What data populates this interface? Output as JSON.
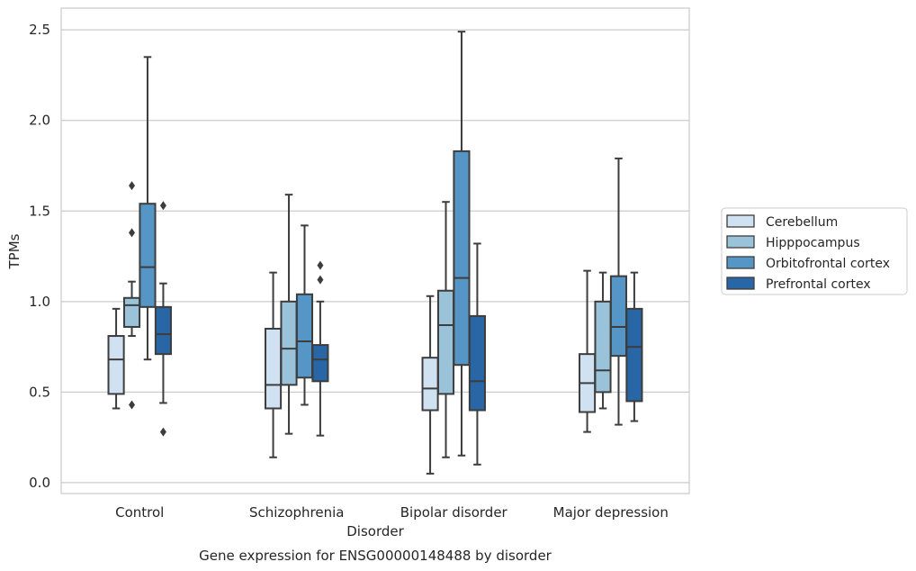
{
  "caption": "Gene expression for ENSG00000148488 by disorder",
  "chart_data": {
    "type": "box",
    "xlabel": "Disorder",
    "ylabel": "TPMs",
    "ylim": [
      -0.06,
      2.62
    ],
    "yticks": [
      "0.0",
      "0.5",
      "1.0",
      "1.5",
      "2.0",
      "2.5"
    ],
    "grid": true,
    "legend_position": "right",
    "categories": [
      "Control",
      "Schizophrenia",
      "Bipolar disorder",
      "Major depression"
    ],
    "series": [
      {
        "name": "Cerebellum",
        "color": "#d0e1f2",
        "boxes": [
          {
            "whislo": 0.41,
            "q1": 0.49,
            "med": 0.68,
            "q3": 0.81,
            "whishi": 0.96,
            "fliers": []
          },
          {
            "whislo": 0.14,
            "q1": 0.41,
            "med": 0.54,
            "q3": 0.85,
            "whishi": 1.16,
            "fliers": []
          },
          {
            "whislo": 0.05,
            "q1": 0.4,
            "med": 0.52,
            "q3": 0.69,
            "whishi": 1.03,
            "fliers": []
          },
          {
            "whislo": 0.28,
            "q1": 0.39,
            "med": 0.55,
            "q3": 0.71,
            "whishi": 1.17,
            "fliers": []
          }
        ]
      },
      {
        "name": "Hipppocampus",
        "color": "#9ac3da",
        "boxes": [
          {
            "whislo": 0.81,
            "q1": 0.86,
            "med": 0.98,
            "q3": 1.02,
            "whishi": 1.11,
            "fliers": [
              0.43,
              1.38,
              1.64
            ]
          },
          {
            "whislo": 0.27,
            "q1": 0.54,
            "med": 0.74,
            "q3": 1.0,
            "whishi": 1.59,
            "fliers": []
          },
          {
            "whislo": 0.14,
            "q1": 0.49,
            "med": 0.87,
            "q3": 1.06,
            "whishi": 1.55,
            "fliers": []
          },
          {
            "whislo": 0.41,
            "q1": 0.5,
            "med": 0.62,
            "q3": 1.0,
            "whishi": 1.16,
            "fliers": []
          }
        ]
      },
      {
        "name": "Orbitofrontal cortex",
        "color": "#5696c6",
        "boxes": [
          {
            "whislo": 0.68,
            "q1": 0.97,
            "med": 1.19,
            "q3": 1.54,
            "whishi": 2.35,
            "fliers": []
          },
          {
            "whislo": 0.43,
            "q1": 0.58,
            "med": 0.78,
            "q3": 1.04,
            "whishi": 1.42,
            "fliers": []
          },
          {
            "whislo": 0.15,
            "q1": 0.65,
            "med": 1.13,
            "q3": 1.83,
            "whishi": 2.49,
            "fliers": []
          },
          {
            "whislo": 0.32,
            "q1": 0.7,
            "med": 0.86,
            "q3": 1.14,
            "whishi": 1.79,
            "fliers": []
          }
        ]
      },
      {
        "name": "Prefrontal cortex",
        "color": "#2866a6",
        "boxes": [
          {
            "whislo": 0.44,
            "q1": 0.71,
            "med": 0.82,
            "q3": 0.97,
            "whishi": 1.1,
            "fliers": [
              0.28,
              1.53
            ]
          },
          {
            "whislo": 0.26,
            "q1": 0.56,
            "med": 0.68,
            "q3": 0.76,
            "whishi": 1.0,
            "fliers": [
              1.12,
              1.2
            ]
          },
          {
            "whislo": 0.1,
            "q1": 0.4,
            "med": 0.56,
            "q3": 0.92,
            "whishi": 1.32,
            "fliers": []
          },
          {
            "whislo": 0.34,
            "q1": 0.45,
            "med": 0.75,
            "q3": 0.96,
            "whishi": 1.16,
            "fliers": []
          }
        ]
      }
    ]
  }
}
